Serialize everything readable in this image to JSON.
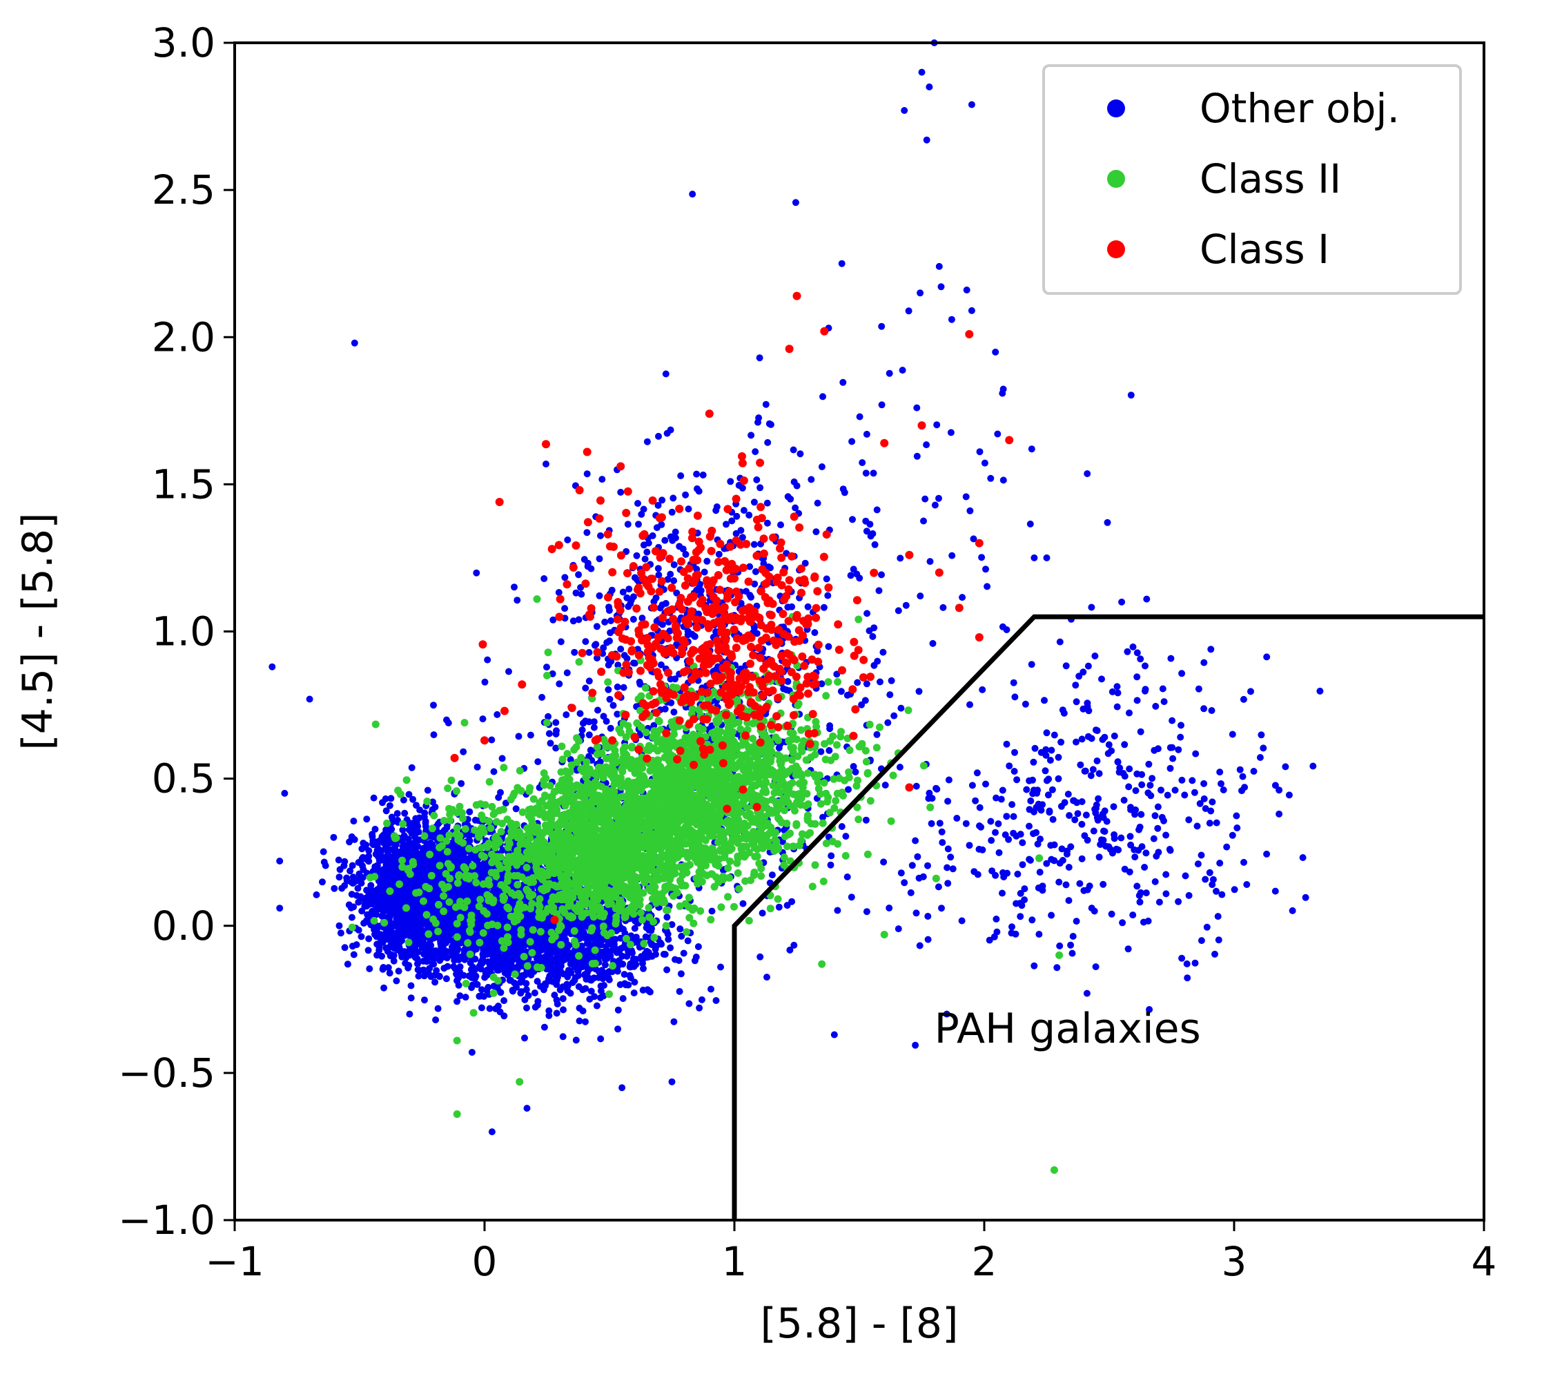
{
  "chart_data": {
    "type": "scatter",
    "title": "",
    "xlabel": "[5.8] - [8]",
    "ylabel": "[4.5] - [5.8]",
    "xlim": [
      -1,
      4
    ],
    "ylim": [
      -1.0,
      3.0
    ],
    "xticks": [
      -1,
      0,
      1,
      2,
      3,
      4
    ],
    "xtick_labels": [
      "−1",
      "0",
      "1",
      "2",
      "3",
      "4"
    ],
    "yticks": [
      -1.0,
      -0.5,
      0.0,
      0.5,
      1.0,
      1.5,
      2.0,
      2.5,
      3.0
    ],
    "ytick_labels": [
      "−1.0",
      "−0.5",
      "0.0",
      "0.5",
      "1.0",
      "1.5",
      "2.0",
      "2.5",
      "3.0"
    ],
    "grid": false,
    "legend_position": "top-right",
    "series": [
      {
        "name": "Other obj.",
        "color": "#0000ee",
        "clusters": [
          {
            "cx": -0.25,
            "cy": 0.12,
            "sx": 0.13,
            "sy": 0.11,
            "n": 1700
          },
          {
            "cx": 0.05,
            "cy": 0.05,
            "sx": 0.18,
            "sy": 0.12,
            "n": 1700
          },
          {
            "cx": 0.35,
            "cy": -0.02,
            "sx": 0.18,
            "sy": 0.12,
            "n": 900
          },
          {
            "cx": 0.85,
            "cy": 0.95,
            "sx": 0.3,
            "sy": 0.28,
            "n": 650
          },
          {
            "cx": 0.7,
            "cy": 0.35,
            "sx": 0.4,
            "sy": 0.25,
            "n": 400
          },
          {
            "cx": 2.6,
            "cy": 0.45,
            "sx": 0.3,
            "sy": 0.25,
            "n": 300
          },
          {
            "cx": 2.05,
            "cy": 0.25,
            "sx": 0.25,
            "sy": 0.18,
            "n": 120
          },
          {
            "cx": 1.5,
            "cy": 1.2,
            "sx": 0.45,
            "sy": 0.45,
            "n": 120
          }
        ],
        "outliers": [
          [
            -0.52,
            1.98
          ],
          [
            -0.85,
            0.88
          ],
          [
            1.8,
            3.0
          ],
          [
            1.75,
            2.9
          ],
          [
            1.78,
            2.85
          ],
          [
            1.95,
            2.79
          ],
          [
            1.68,
            2.77
          ],
          [
            1.77,
            2.67
          ],
          [
            1.43,
            2.25
          ],
          [
            1.82,
            2.24
          ],
          [
            1.93,
            2.16
          ],
          [
            1.95,
            2.09
          ],
          [
            1.87,
            2.06
          ],
          [
            1.59,
            1.77
          ],
          [
            1.53,
            1.67
          ],
          [
            1.73,
            1.76
          ],
          [
            2.19,
            1.62
          ],
          [
            2.2,
            1.25
          ],
          [
            2.25,
            1.25
          ],
          [
            2.55,
            1.1
          ],
          [
            2.65,
            1.11
          ],
          [
            2.87,
            -0.05
          ],
          [
            2.93,
            0.35
          ],
          [
            -0.7,
            0.77
          ],
          [
            -0.8,
            0.45
          ],
          [
            -0.82,
            0.22
          ],
          [
            -0.82,
            0.06
          ],
          [
            -0.3,
            -0.3
          ],
          [
            0.03,
            -0.7
          ],
          [
            0.55,
            -0.55
          ],
          [
            0.75,
            -0.53
          ],
          [
            0.17,
            -0.62
          ],
          [
            -0.05,
            -0.43
          ],
          [
            1.4,
            -0.37
          ],
          [
            1.85,
            -0.3
          ]
        ]
      },
      {
        "name": "Class II",
        "color": "#32cd32",
        "clusters": [
          {
            "cx": 0.5,
            "cy": 0.27,
            "sx": 0.17,
            "sy": 0.12,
            "n": 1100
          },
          {
            "cx": 0.85,
            "cy": 0.45,
            "sx": 0.2,
            "sy": 0.14,
            "n": 1300
          },
          {
            "cx": 0.3,
            "cy": 0.22,
            "sx": 0.25,
            "sy": 0.15,
            "n": 400
          },
          {
            "cx": 1.1,
            "cy": 0.55,
            "sx": 0.25,
            "sy": 0.18,
            "n": 350
          },
          {
            "cx": 0.0,
            "cy": 0.15,
            "sx": 0.22,
            "sy": 0.15,
            "n": 180
          }
        ],
        "outliers": [
          [
            -0.11,
            -0.64
          ],
          [
            -0.11,
            -0.39
          ],
          [
            0.14,
            -0.53
          ],
          [
            2.28,
            -0.83
          ],
          [
            2.3,
            -0.1
          ],
          [
            1.6,
            -0.03
          ],
          [
            1.35,
            -0.13
          ],
          [
            2.22,
            0.23
          ],
          [
            0.21,
            1.11
          ],
          [
            0.25,
            0.85
          ],
          [
            0.25,
            0.69
          ],
          [
            -0.08,
            0.69
          ],
          [
            1.4,
            0.4
          ]
        ]
      },
      {
        "name": "Class I",
        "color": "#ff0000",
        "clusters": [
          {
            "cx": 0.95,
            "cy": 0.95,
            "sx": 0.22,
            "sy": 0.18,
            "n": 420
          },
          {
            "cx": 0.85,
            "cy": 1.15,
            "sx": 0.3,
            "sy": 0.22,
            "n": 120
          }
        ],
        "outliers": [
          [
            1.25,
            2.14
          ],
          [
            1.36,
            2.02
          ],
          [
            1.94,
            2.01
          ],
          [
            1.22,
            1.96
          ],
          [
            0.9,
            1.74
          ],
          [
            1.75,
            1.7
          ],
          [
            2.1,
            1.65
          ],
          [
            0.06,
            1.44
          ],
          [
            0.38,
            1.48
          ],
          [
            1.6,
            1.64
          ],
          [
            1.98,
            1.3
          ],
          [
            1.7,
            1.26
          ],
          [
            1.82,
            1.2
          ],
          [
            1.9,
            1.08
          ],
          [
            1.98,
            0.98
          ],
          [
            0.27,
            1.28
          ],
          [
            0.33,
            1.16
          ],
          [
            0.15,
            0.82
          ],
          [
            0.08,
            0.73
          ],
          [
            -0.12,
            0.57
          ],
          [
            0.0,
            0.63
          ],
          [
            0.35,
            0.74
          ],
          [
            0.28,
            0.02
          ],
          [
            1.7,
            0.47
          ]
        ]
      }
    ],
    "boundary": [
      [
        1.0,
        -1.0
      ],
      [
        1.0,
        0.0
      ],
      [
        2.2,
        1.05
      ],
      [
        4.0,
        1.05
      ]
    ],
    "annotations": [
      {
        "text": "PAH galaxies",
        "x": 1.8,
        "y": -0.35
      }
    ]
  }
}
